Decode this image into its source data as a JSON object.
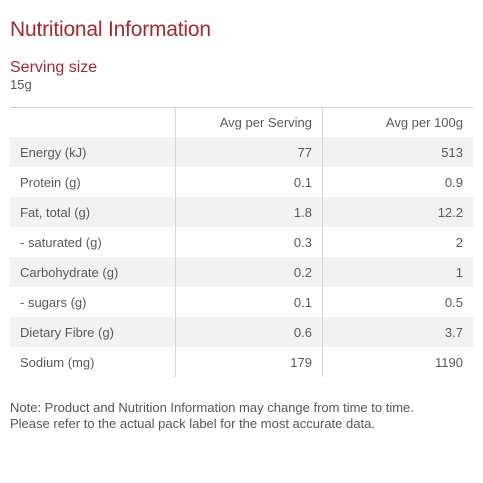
{
  "title": "Nutritional Information",
  "serving": {
    "label": "Serving size",
    "value": "15g"
  },
  "table": {
    "headers": [
      "",
      "Avg per Serving",
      "Avg per 100g"
    ],
    "rows": [
      {
        "name": "Energy (kJ)",
        "per_serving": "77",
        "per_100g": "513"
      },
      {
        "name": "Protein (g)",
        "per_serving": "0.1",
        "per_100g": "0.9"
      },
      {
        "name": "Fat, total (g)",
        "per_serving": "1.8",
        "per_100g": "12.2"
      },
      {
        "name": "- saturated (g)",
        "per_serving": "0.3",
        "per_100g": "2"
      },
      {
        "name": "Carbohydrate (g)",
        "per_serving": "0.2",
        "per_100g": "1"
      },
      {
        "name": "- sugars (g)",
        "per_serving": "0.1",
        "per_100g": "0.5"
      },
      {
        "name": "Dietary Fibre (g)",
        "per_serving": "0.6",
        "per_100g": "3.7"
      },
      {
        "name": "Sodium (mg)",
        "per_serving": "179",
        "per_100g": "1190"
      }
    ]
  },
  "note": "Note: Product and Nutrition Information may change from time to time. Please refer to the actual pack label for the most accurate data.",
  "colors": {
    "accent": "#a4282f",
    "text": "#555555",
    "row_stripe": "#f2f2f2"
  }
}
